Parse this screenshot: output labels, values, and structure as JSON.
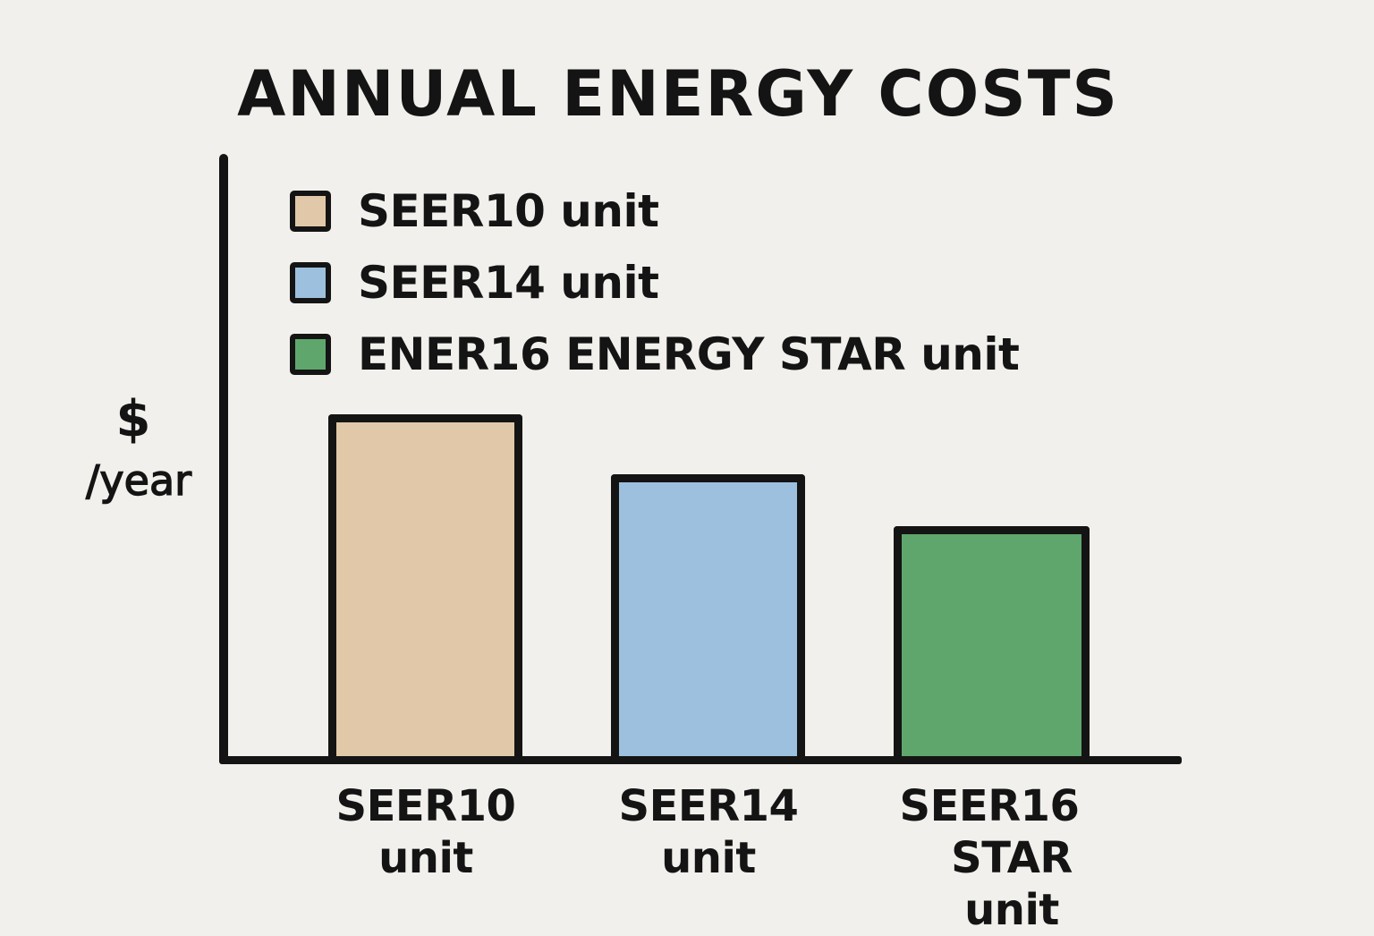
{
  "title": "ANNUAL ENERGY COSTS",
  "y_axis": {
    "symbol": "$",
    "unit": "/year"
  },
  "legend": {
    "items": [
      {
        "label": "SEER10 unit",
        "color": "#e0c8a8"
      },
      {
        "label": "SEER14 unit",
        "color": "#9cc0de"
      },
      {
        "label": "ENER16 ENERGY STAR unit",
        "color": "#5fa66c"
      }
    ]
  },
  "x_axis": {
    "labels": [
      {
        "line1": "SEER10",
        "line2": "unit"
      },
      {
        "line1": "SEER14",
        "line2": "unit"
      },
      {
        "line1": "SEER16",
        "line2": "STAR unit"
      }
    ]
  },
  "colors": {
    "background": "#f1f0ec",
    "ink": "#141414",
    "seer10": "#e0c8a8",
    "seer14": "#9cc0de",
    "seer16": "#5fa66c"
  },
  "chart_data": {
    "type": "bar",
    "title": "ANNUAL ENERGY COSTS",
    "xlabel": "",
    "ylabel": "$ /year",
    "categories": [
      "SEER10 unit",
      "SEER14 unit",
      "SEER16 STAR unit"
    ],
    "values": [
      386,
      319,
      261
    ],
    "value_note": "No numeric ticks shown; values are relative bar heights (px above baseline)",
    "series": [
      {
        "name": "SEER10 unit",
        "values": [
          386,
          null,
          null
        ],
        "color": "#e0c8a8"
      },
      {
        "name": "SEER14 unit",
        "values": [
          null,
          319,
          null
        ],
        "color": "#9cc0de"
      },
      {
        "name": "ENER16 ENERGY STAR unit",
        "values": [
          null,
          null,
          261
        ],
        "color": "#5fa66c"
      }
    ],
    "legend": [
      "SEER10 unit",
      "SEER14 unit",
      "ENER16 ENERGY STAR unit"
    ],
    "legend_position": "top-left inside plot",
    "grid": false,
    "ylim": [
      0,
      680
    ]
  }
}
